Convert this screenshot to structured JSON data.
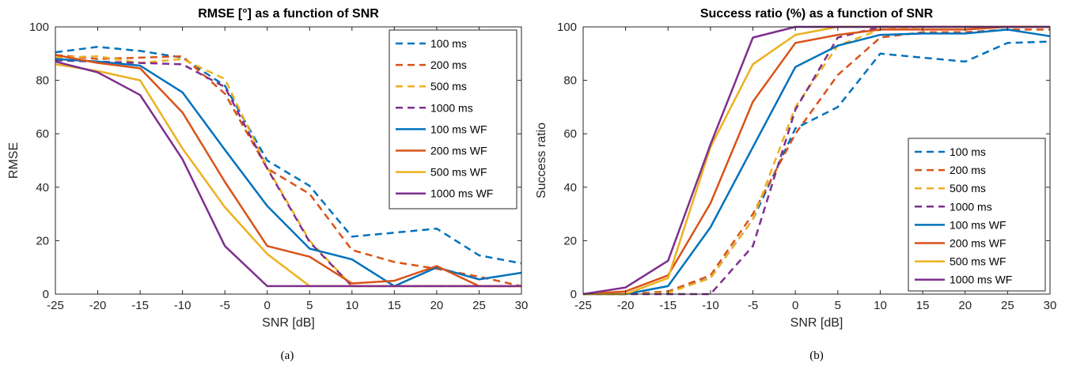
{
  "chart_data": [
    {
      "type": "line",
      "title": "RMSE [°] as a function of SNR",
      "xlabel": "SNR [dB]",
      "ylabel": "RMSE",
      "caption": "(a)",
      "xlim": [
        -25,
        30
      ],
      "ylim": [
        0,
        100
      ],
      "xticks": [
        -25,
        -20,
        -15,
        -10,
        -5,
        0,
        5,
        10,
        15,
        20,
        25,
        30
      ],
      "yticks": [
        0,
        20,
        40,
        60,
        80,
        100
      ],
      "grid": false,
      "legend_position": "top-right",
      "x": [
        -25,
        -20,
        -15,
        -10,
        -5,
        0,
        5,
        10,
        15,
        20,
        25,
        30
      ],
      "series": [
        {
          "name": "100 ms",
          "color": "#0072BD",
          "style": "dashed",
          "values": [
            90.5,
            92.5,
            91,
            88.5,
            78,
            50,
            40.5,
            21.5,
            23,
            24.5,
            14.5,
            11.5
          ]
        },
        {
          "name": "200 ms",
          "color": "#D95319",
          "style": "dashed",
          "values": [
            89.5,
            88,
            88.5,
            89,
            75,
            47,
            37.5,
            16.5,
            12,
            9.5,
            6.5,
            3
          ]
        },
        {
          "name": "500 ms",
          "color": "#EDB120",
          "style": "dashed",
          "values": [
            88.5,
            89,
            86.5,
            88,
            80.5,
            47.5,
            20,
            3,
            3,
            3,
            3,
            3
          ]
        },
        {
          "name": "1000 ms",
          "color": "#7E2F8E",
          "style": "dashed",
          "values": [
            87.5,
            87,
            86.5,
            86,
            77.5,
            47,
            19.5,
            3,
            3,
            3,
            3,
            3
          ]
        },
        {
          "name": "100 ms WF",
          "color": "#0072BD",
          "style": "solid",
          "values": [
            88,
            87,
            85.5,
            75.5,
            54,
            33,
            17,
            13,
            3,
            10,
            5.5,
            8
          ]
        },
        {
          "name": "200 ms WF",
          "color": "#D95319",
          "style": "solid",
          "values": [
            89.5,
            86.5,
            84.5,
            68,
            42,
            18,
            14,
            4,
            5,
            10.5,
            3,
            3
          ]
        },
        {
          "name": "500 ms WF",
          "color": "#EDB120",
          "style": "solid",
          "values": [
            86,
            83.5,
            80,
            54.5,
            32.5,
            15,
            3,
            3,
            3,
            3,
            3,
            3
          ]
        },
        {
          "name": "1000 ms WF",
          "color": "#7E2F8E",
          "style": "solid",
          "values": [
            87,
            83,
            74.5,
            50.5,
            18,
            3,
            3,
            3,
            3,
            3,
            3,
            3
          ]
        }
      ]
    },
    {
      "type": "line",
      "title": "Success ratio (%) as a function of SNR",
      "xlabel": "SNR [dB]",
      "ylabel": "Success ratio",
      "caption": "(b)",
      "xlim": [
        -25,
        30
      ],
      "ylim": [
        0,
        100
      ],
      "xticks": [
        -25,
        -20,
        -15,
        -10,
        -5,
        0,
        5,
        10,
        15,
        20,
        25,
        30
      ],
      "yticks": [
        0,
        20,
        40,
        60,
        80,
        100
      ],
      "grid": false,
      "legend_position": "bottom-right",
      "x": [
        -25,
        -20,
        -15,
        -10,
        -5,
        0,
        5,
        10,
        15,
        20,
        25,
        30
      ],
      "series": [
        {
          "name": "100 ms",
          "color": "#0072BD",
          "style": "dashed",
          "values": [
            0,
            0,
            1,
            6,
            28,
            62,
            70,
            90,
            88.5,
            87,
            94,
            94.5
          ]
        },
        {
          "name": "200 ms",
          "color": "#D95319",
          "style": "dashed",
          "values": [
            0,
            0,
            1,
            7,
            30,
            60,
            82,
            96,
            98,
            98,
            99,
            99
          ]
        },
        {
          "name": "500 ms",
          "color": "#EDB120",
          "style": "dashed",
          "values": [
            0,
            0,
            0.5,
            6,
            28,
            70,
            93,
            99,
            100,
            100,
            100,
            100
          ]
        },
        {
          "name": "1000 ms",
          "color": "#7E2F8E",
          "style": "dashed",
          "values": [
            0,
            0,
            0,
            0,
            18,
            69,
            96,
            100,
            100,
            100,
            100,
            100
          ]
        },
        {
          "name": "100 ms WF",
          "color": "#0072BD",
          "style": "solid",
          "values": [
            0,
            0,
            3,
            25,
            55,
            85,
            93,
            97,
            97.5,
            97.5,
            99,
            96.5
          ]
        },
        {
          "name": "200 ms WF",
          "color": "#D95319",
          "style": "solid",
          "values": [
            0,
            1,
            7,
            34,
            72,
            94,
            97,
            99,
            99,
            99,
            100,
            100
          ]
        },
        {
          "name": "500 ms WF",
          "color": "#EDB120",
          "style": "solid",
          "values": [
            0,
            0,
            6,
            55,
            86,
            97,
            100,
            100,
            100,
            100,
            100,
            100
          ]
        },
        {
          "name": "1000 ms WF",
          "color": "#7E2F8E",
          "style": "solid",
          "values": [
            0,
            2.5,
            12.5,
            56,
            96,
            100,
            100,
            100,
            100,
            100,
            100,
            100
          ]
        }
      ]
    }
  ]
}
